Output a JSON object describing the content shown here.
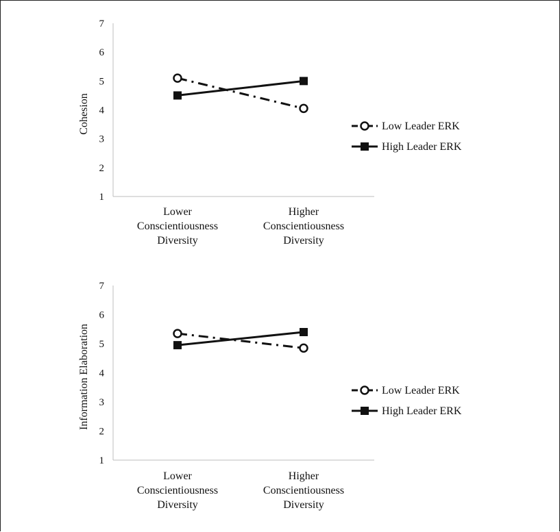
{
  "chart_data": [
    {
      "type": "line",
      "ylabel": "Cohesion",
      "xlabel": "",
      "ylim": [
        1,
        7
      ],
      "yticks": [
        1,
        2,
        3,
        4,
        5,
        6,
        7
      ],
      "categories": [
        [
          "Lower",
          "Conscientiousness",
          "Diversity"
        ],
        [
          "Higher",
          "Conscientiousness",
          "Diversity"
        ]
      ],
      "series": [
        {
          "name": "Low Leader ERK",
          "values": [
            5.1,
            4.05
          ],
          "style": "dash-dot",
          "marker": "open-circle",
          "color": "#111111"
        },
        {
          "name": "High Leader ERK",
          "values": [
            4.5,
            5.0
          ],
          "style": "solid",
          "marker": "filled-square",
          "color": "#111111"
        }
      ],
      "legend_position": "right"
    },
    {
      "type": "line",
      "ylabel": "Information Elaboration",
      "xlabel": "",
      "ylim": [
        1,
        7
      ],
      "yticks": [
        1,
        2,
        3,
        4,
        5,
        6,
        7
      ],
      "categories": [
        [
          "Lower",
          "Conscientiousness",
          "Diversity"
        ],
        [
          "Higher",
          "Conscientiousness",
          "Diversity"
        ]
      ],
      "series": [
        {
          "name": "Low Leader ERK",
          "values": [
            5.35,
            4.85
          ],
          "style": "dash-dot",
          "marker": "open-circle",
          "color": "#111111"
        },
        {
          "name": "High Leader ERK",
          "values": [
            4.95,
            5.4
          ],
          "style": "solid",
          "marker": "filled-square",
          "color": "#111111"
        }
      ],
      "legend_position": "right"
    }
  ]
}
